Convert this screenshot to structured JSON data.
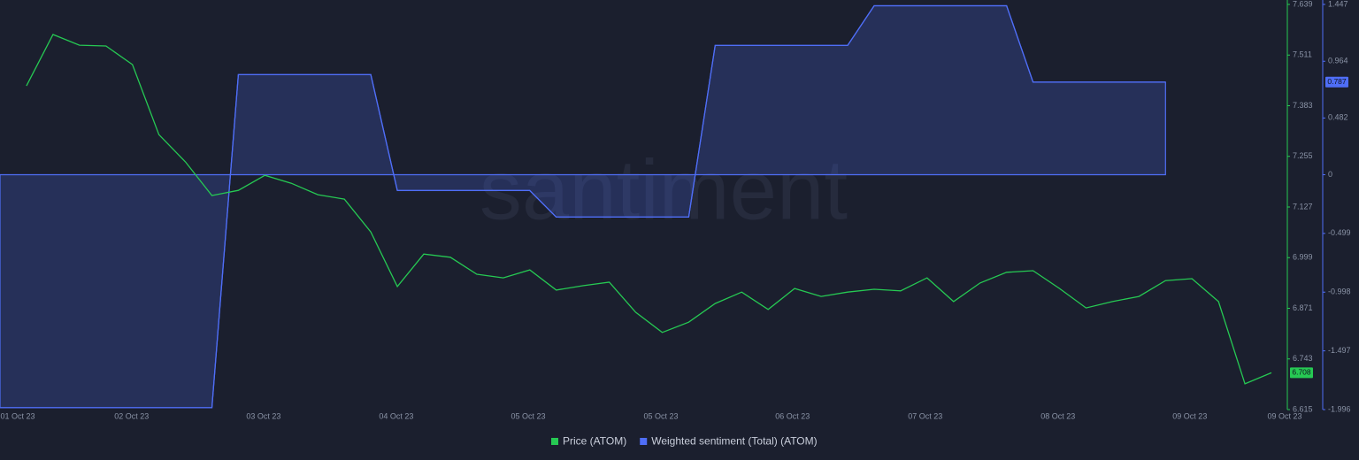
{
  "chart_data": {
    "type": "line",
    "watermark": "santiment",
    "xlim": [
      -1,
      47.6
    ],
    "xticks": [
      {
        "value": -0.33,
        "label": "01 Oct 23"
      },
      {
        "value": 3.97,
        "label": "02 Oct 23"
      },
      {
        "value": 8.95,
        "label": "03 Oct 23"
      },
      {
        "value": 13.96,
        "label": "04 Oct 23"
      },
      {
        "value": 18.94,
        "label": "05 Oct 23"
      },
      {
        "value": 23.95,
        "label": "05 Oct 23"
      },
      {
        "value": 28.92,
        "label": "06 Oct 23"
      },
      {
        "value": 33.93,
        "label": "07 Oct 23"
      },
      {
        "value": 38.94,
        "label": "08 Oct 23"
      },
      {
        "value": 43.92,
        "label": "09 Oct 23"
      },
      {
        "value": 47.5,
        "label": "09 Oct 23"
      }
    ],
    "ylim": [
      6.615,
      7.639
    ],
    "yticks": [
      6.615,
      6.743,
      6.871,
      6.999,
      7.127,
      7.255,
      7.383,
      7.511,
      7.639
    ],
    "y2lim": [
      -1.996,
      1.447
    ],
    "y2ticks": [
      -1.996,
      -1.497,
      -0.998,
      -0.499,
      0,
      0.482,
      0.964,
      1.447
    ],
    "series": [
      {
        "name": "Price (ATOM)",
        "color": "#26c953",
        "x": [
          0,
          1,
          2,
          3,
          4,
          5,
          6,
          7,
          8,
          9,
          10,
          11,
          12,
          13,
          14,
          15,
          16,
          17,
          18,
          19,
          20,
          21,
          22,
          23,
          24,
          25,
          26,
          27,
          28,
          29,
          30,
          31,
          32,
          33,
          34,
          35,
          36,
          37,
          38,
          39,
          40,
          41,
          42,
          43,
          44,
          45,
          46,
          47
        ],
        "values": [
          7.433,
          7.563,
          7.536,
          7.534,
          7.487,
          7.31,
          7.241,
          7.156,
          7.169,
          7.207,
          7.187,
          7.158,
          7.147,
          7.064,
          6.926,
          7.008,
          7.0,
          6.957,
          6.948,
          6.968,
          6.917,
          6.928,
          6.937,
          6.861,
          6.81,
          6.836,
          6.883,
          6.912,
          6.868,
          6.921,
          6.901,
          6.912,
          6.919,
          6.915,
          6.948,
          6.888,
          6.935,
          6.962,
          6.966,
          6.921,
          6.872,
          6.888,
          6.901,
          6.941,
          6.946,
          6.888,
          6.68,
          6.708
        ]
      },
      {
        "name": "Weighted sentiment (Total) (ATOM)",
        "color": "#4f6ef7",
        "axis": "y2",
        "area": true,
        "x": [
          -1,
          7,
          8,
          13,
          14,
          19,
          20,
          25,
          26,
          31,
          32,
          37,
          38,
          43
        ],
        "values": [
          -1.98,
          -1.98,
          0.85,
          0.85,
          -0.135,
          -0.135,
          -0.36,
          -0.36,
          1.098,
          1.098,
          1.436,
          1.436,
          0.787,
          0.787
        ]
      }
    ]
  }
}
